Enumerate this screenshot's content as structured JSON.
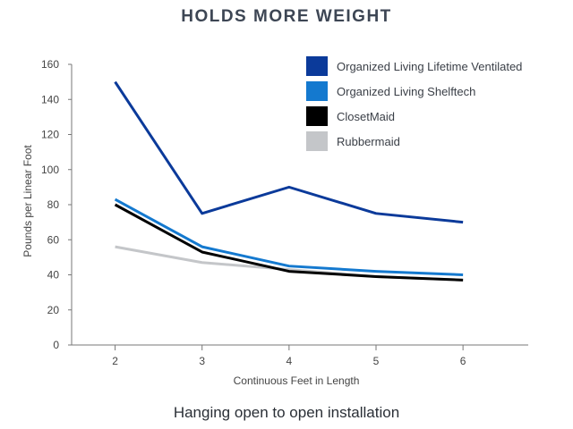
{
  "chart_data": {
    "type": "line",
    "title": "HOLDS MORE WEIGHT",
    "caption": "Hanging open to open installation",
    "xlabel": "Continuous Feet in Length",
    "ylabel": "Pounds per Linear Foot",
    "x": [
      2,
      3,
      4,
      5,
      6
    ],
    "xlim": [
      1.5,
      6.75
    ],
    "ylim": [
      0,
      160
    ],
    "yticks": [
      0,
      20,
      40,
      60,
      80,
      100,
      120,
      140,
      160
    ],
    "grid": false,
    "legend_position": "top-right",
    "series": [
      {
        "name": "Organized Living Lifetime Ventilated",
        "color": "#0b3a9a",
        "values": [
          150,
          75,
          90,
          75,
          70
        ]
      },
      {
        "name": "Organized Living Shelftech",
        "color": "#1479cf",
        "values": [
          83,
          56,
          45,
          42,
          40
        ]
      },
      {
        "name": "ClosetMaid",
        "color": "#000000",
        "values": [
          80,
          53,
          42,
          39,
          37
        ]
      },
      {
        "name": "Rubbermaid",
        "color": "#c4c6c9",
        "values": [
          56,
          47,
          43,
          39,
          37
        ]
      }
    ]
  }
}
